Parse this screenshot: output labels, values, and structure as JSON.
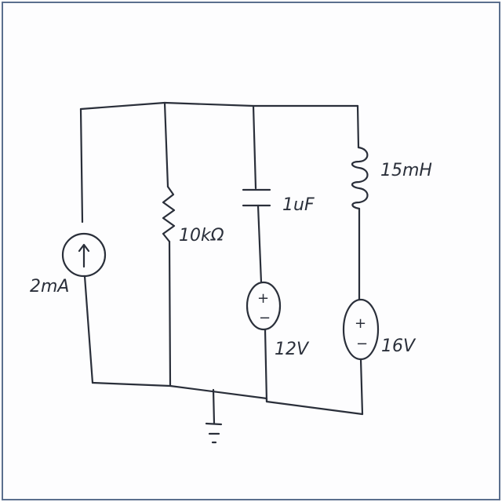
{
  "components": {
    "current_source": {
      "label": "2mA"
    },
    "resistor": {
      "label": "10kΩ"
    },
    "capacitor": {
      "label": "1uF"
    },
    "inductor": {
      "label": "15mH"
    },
    "voltage_source_1": {
      "label": "12V"
    },
    "voltage_source_2": {
      "label": "16V"
    }
  },
  "symbols": {
    "plus": "+",
    "minus": "−",
    "arrow": "↑"
  },
  "colors": {
    "ink": "#2a2f3a",
    "frame": "#5b6f8e"
  }
}
